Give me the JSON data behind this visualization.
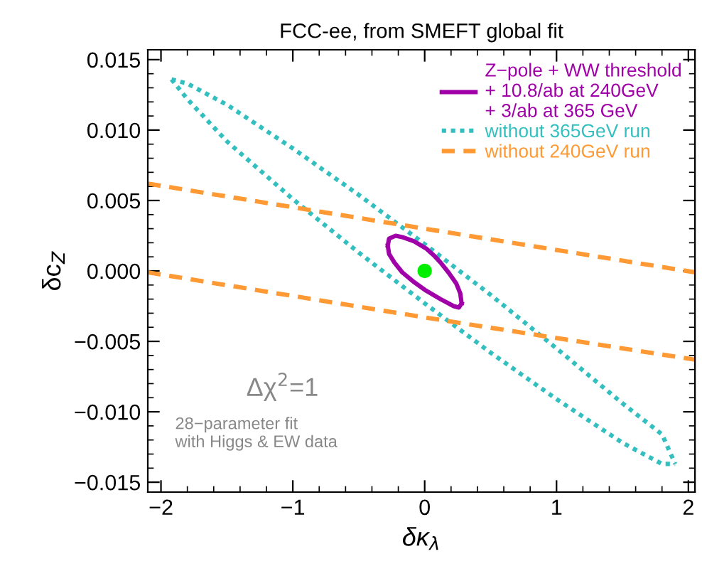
{
  "chart_data": {
    "type": "line",
    "title": "FCC-ee, from SMEFT global fit",
    "xlabel": "δκ$_{λ}$",
    "ylabel": "δc$_{Z}$",
    "xlim": [
      -2.1,
      2.05
    ],
    "ylim": [
      -0.0157,
      0.0157
    ],
    "xticks": [
      {
        "value": -2,
        "label": "−2"
      },
      {
        "value": -1,
        "label": "−1"
      },
      0,
      1,
      2
    ],
    "yticks": [
      {
        "value": -0.015,
        "label": "−0.015"
      },
      {
        "value": -0.01,
        "label": "−0.010"
      },
      {
        "value": -0.005,
        "label": "−0.005"
      },
      {
        "value": 0,
        "label": "0.000"
      },
      {
        "value": 0.005,
        "label": "0.005"
      },
      {
        "value": 0.01,
        "label": "0.010"
      },
      {
        "value": 0.015,
        "label": "0.015"
      }
    ],
    "grid": false,
    "legend": "top right",
    "series": [
      {
        "name": "without 365GeV run",
        "color": "#33bfbf",
        "line_style": "dotted",
        "x": [
          -1.92,
          -1.8,
          -1.5,
          -1.0,
          -0.5,
          0,
          0.5,
          1.0,
          1.5,
          1.8,
          1.9,
          null,
          -1.92,
          -1.8,
          -1.5,
          -1.0,
          -0.5,
          0,
          0.5,
          1.0,
          1.5,
          1.8,
          1.9
        ],
        "values": [
          0.0136,
          0.0133,
          0.0118,
          0.0087,
          0.0054,
          0.0019,
          -0.0017,
          -0.0055,
          -0.0094,
          -0.0116,
          -0.0137,
          null,
          0.0136,
          0.0122,
          0.0092,
          0.0051,
          0.0013,
          -0.0023,
          -0.0058,
          -0.0091,
          -0.0122,
          -0.0137,
          -0.0137
        ]
      },
      {
        "name": "without 240GeV run",
        "color": "#ff9933",
        "line_style": "dashed",
        "x": [
          -2.1,
          0,
          2.05,
          null,
          -2.1,
          0,
          2.05
        ],
        "values": [
          0.0062,
          0.003,
          -0.0001,
          null,
          -0.0001,
          -0.0033,
          -0.0063
        ]
      },
      {
        "name": "Z−pole + WW threshold\n+ 10.8/ab at 240GeV\n+ 3/ab at 365 GeV",
        "color": "#a000a8",
        "line_style": "solid",
        "x": [
          -0.28,
          -0.27,
          -0.22,
          -0.17,
          -0.08,
          0.01,
          0.07,
          0.12,
          0.18,
          0.24,
          0.27,
          0.28,
          null,
          -0.28,
          -0.27,
          -0.23,
          -0.17,
          -0.08,
          0.01,
          0.12,
          0.22,
          0.26,
          0.28
        ],
        "values": [
          0.0018,
          0.0023,
          0.0025,
          0.0024,
          0.0021,
          0.0016,
          0.0011,
          0.0006,
          -0.0001,
          -0.0009,
          -0.0016,
          -0.0023,
          null,
          0.0018,
          0.0012,
          0.0006,
          -0.0001,
          -0.0008,
          -0.0014,
          -0.002,
          -0.0025,
          -0.0026,
          -0.0023
        ]
      },
      {
        "type": "scatter",
        "color": "#00ee00",
        "marker": "circle",
        "x": [
          0
        ],
        "values": [
          0
        ]
      }
    ],
    "annotations": [
      "Δχ$^{2}$=1",
      "28−parameter fit\nwith Higgs & EW data"
    ]
  }
}
